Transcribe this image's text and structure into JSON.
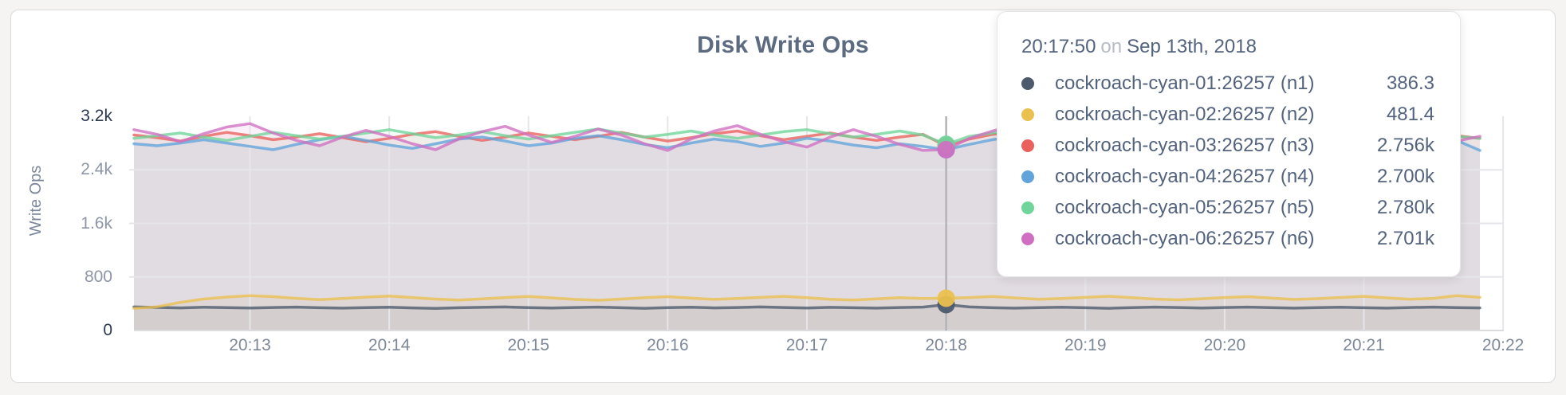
{
  "page": {
    "background": "#f5f4f2"
  },
  "card": {
    "background": "#ffffff",
    "border_color": "#dadada"
  },
  "tooltip": {
    "time": "20:17:50",
    "connector": "on",
    "date": "Sep 13th, 2018",
    "rows": [
      {
        "label": "cockroach-cyan-01:26257 (n1)",
        "value": "386.3",
        "color": "#4b5a6d"
      },
      {
        "label": "cockroach-cyan-02:26257 (n2)",
        "value": "481.4",
        "color": "#eac04e"
      },
      {
        "label": "cockroach-cyan-03:26257 (n3)",
        "value": "2.756k",
        "color": "#e9605c"
      },
      {
        "label": "cockroach-cyan-04:26257 (n4)",
        "value": "2.700k",
        "color": "#60a4db"
      },
      {
        "label": "cockroach-cyan-05:26257 (n5)",
        "value": "2.780k",
        "color": "#6fd59a"
      },
      {
        "label": "cockroach-cyan-06:26257 (n6)",
        "value": "2.701k",
        "color": "#d06fc1"
      }
    ]
  },
  "chart_data": {
    "type": "line",
    "title": "Disk Write Ops",
    "xlabel": "",
    "ylabel": "Write Ops",
    "ylim": [
      0,
      3200
    ],
    "x_range": [
      "20:12:10",
      "20:21:50"
    ],
    "x_domain_seconds": 580,
    "sample_interval_s": 10,
    "grid": true,
    "legend_position": "tooltip",
    "y_ticks": [
      {
        "value": 0,
        "label": "0",
        "emphasis": true
      },
      {
        "value": 800,
        "label": "800",
        "emphasis": false
      },
      {
        "value": 1600,
        "label": "1.6k",
        "emphasis": false
      },
      {
        "value": 2400,
        "label": "2.4k",
        "emphasis": false
      },
      {
        "value": 3200,
        "label": "3.2k",
        "emphasis": true
      }
    ],
    "x_ticks": [
      {
        "offset_s": 50,
        "label": "20:13"
      },
      {
        "offset_s": 110,
        "label": "20:14"
      },
      {
        "offset_s": 170,
        "label": "20:15"
      },
      {
        "offset_s": 230,
        "label": "20:16"
      },
      {
        "offset_s": 290,
        "label": "20:17"
      },
      {
        "offset_s": 350,
        "label": "20:18"
      },
      {
        "offset_s": 410,
        "label": "20:19"
      },
      {
        "offset_s": 470,
        "label": "20:20"
      },
      {
        "offset_s": 530,
        "label": "20:21"
      },
      {
        "offset_s": 590,
        "label": "20:22"
      }
    ],
    "hover": {
      "index": 35,
      "time": "20:17:50",
      "date": "Sep 13th, 2018",
      "line_color": "#b3b3b8"
    },
    "series": [
      {
        "name": "cockroach-cyan-01:26257 (n1)",
        "node": "n1",
        "color": "#4b5a6d",
        "hover_value": 386.3,
        "hover_display": "386.3",
        "values": [
          352,
          345,
          338,
          348,
          342,
          336,
          344,
          350,
          340,
          334,
          342,
          348,
          338,
          330,
          340,
          346,
          352,
          342,
          336,
          344,
          350,
          340,
          332,
          342,
          348,
          338,
          344,
          352,
          344,
          336,
          346,
          340,
          334,
          344,
          350,
          386.3,
          352,
          340,
          334,
          342,
          348,
          340,
          332,
          342,
          350,
          344,
          336,
          344,
          350,
          342,
          334,
          342,
          348,
          340,
          334,
          344,
          350,
          342,
          338
        ]
      },
      {
        "name": "cockroach-cyan-02:26257 (n2)",
        "node": "n2",
        "color": "#eac04e",
        "hover_value": 481.4,
        "hover_display": "481.4",
        "values": [
          330,
          355,
          420,
          470,
          500,
          520,
          505,
          480,
          462,
          478,
          498,
          515,
          492,
          470,
          455,
          472,
          492,
          508,
          488,
          465,
          452,
          470,
          490,
          505,
          485,
          465,
          478,
          495,
          510,
          490,
          468,
          455,
          472,
          490,
          478,
          481.4,
          492,
          508,
          486,
          466,
          478,
          495,
          512,
          490,
          470,
          458,
          475,
          492,
          506,
          484,
          464,
          476,
          494,
          510,
          488,
          468,
          480,
          520,
          495
        ]
      },
      {
        "name": "cockroach-cyan-03:26257 (n3)",
        "node": "n3",
        "color": "#e9605c",
        "hover_value": 2756,
        "hover_display": "2.756k",
        "values": [
          2920,
          2880,
          2830,
          2900,
          2960,
          2910,
          2850,
          2890,
          2940,
          2880,
          2820,
          2870,
          2930,
          2970,
          2900,
          2840,
          2890,
          2950,
          2900,
          2850,
          2900,
          2960,
          2890,
          2830,
          2880,
          2940,
          2980,
          2910,
          2850,
          2900,
          2950,
          2890,
          2840,
          2890,
          2930,
          2756,
          2860,
          2930,
          2970,
          2900,
          2850,
          2910,
          2960,
          2890,
          2840,
          2890,
          2950,
          2900,
          2850,
          2910,
          2960,
          2900,
          2840,
          2880,
          2940,
          2890,
          2850,
          2910,
          2870
        ]
      },
      {
        "name": "cockroach-cyan-04:26257 (n4)",
        "node": "n4",
        "color": "#60a4db",
        "hover_value": 2700,
        "hover_display": "2.700k",
        "values": [
          2790,
          2760,
          2800,
          2850,
          2800,
          2750,
          2700,
          2780,
          2850,
          2900,
          2840,
          2770,
          2720,
          2790,
          2860,
          2890,
          2830,
          2760,
          2800,
          2870,
          2910,
          2850,
          2780,
          2730,
          2800,
          2860,
          2820,
          2750,
          2800,
          2870,
          2830,
          2770,
          2730,
          2790,
          2750,
          2700,
          2780,
          2850,
          2900,
          2840,
          2780,
          2740,
          2800,
          2870,
          2910,
          2850,
          2780,
          2820,
          2880,
          2830,
          2760,
          2720,
          2790,
          2850,
          2810,
          2750,
          2800,
          2840,
          2690
        ]
      },
      {
        "name": "cockroach-cyan-05:26257 (n5)",
        "node": "n5",
        "color": "#6fd59a",
        "hover_value": 2780,
        "hover_display": "2.780k",
        "values": [
          2870,
          2910,
          2950,
          2890,
          2840,
          2900,
          2960,
          2910,
          2860,
          2900,
          2950,
          3000,
          2940,
          2880,
          2920,
          2970,
          2910,
          2860,
          2910,
          2960,
          3010,
          2950,
          2890,
          2930,
          2980,
          2920,
          2870,
          2920,
          2970,
          3000,
          2940,
          2890,
          2930,
          2980,
          2920,
          2780,
          2900,
          2950,
          3000,
          3040,
          2970,
          2910,
          2950,
          3000,
          2940,
          2890,
          2930,
          2970,
          2920,
          2860,
          2900,
          2950,
          2990,
          2930,
          2880,
          2920,
          2960,
          2900,
          2870
        ]
      },
      {
        "name": "cockroach-cyan-06:26257 (n6)",
        "node": "n6",
        "color": "#d06fc1",
        "hover_value": 2701,
        "hover_display": "2.701k",
        "values": [
          3000,
          2930,
          2820,
          2940,
          3040,
          3090,
          2950,
          2840,
          2760,
          2890,
          2990,
          2900,
          2790,
          2700,
          2860,
          2970,
          3050,
          2920,
          2810,
          2900,
          3010,
          2920,
          2790,
          2690,
          2860,
          2980,
          3060,
          2930,
          2820,
          2740,
          2890,
          3000,
          2900,
          2780,
          2690,
          2701,
          2870,
          2980,
          3070,
          2950,
          2830,
          2750,
          2890,
          3000,
          3080,
          2940,
          2810,
          2730,
          2880,
          2990,
          2900,
          2790,
          2720,
          2870,
          2970,
          3040,
          2920,
          2830,
          2900
        ]
      }
    ]
  }
}
